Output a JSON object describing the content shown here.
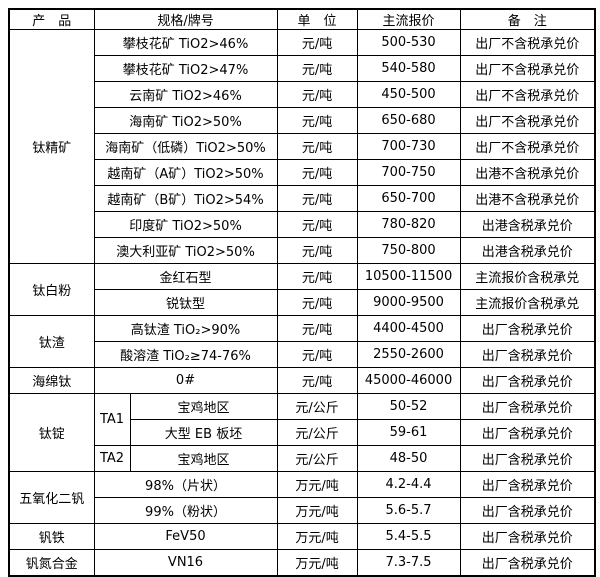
{
  "colors": {
    "background": "#ffffff",
    "border": "#000000",
    "text": "#000000"
  },
  "table": {
    "headers": {
      "product": "产　品",
      "spec": "规格/牌号",
      "unit": "单　位",
      "price": "主流报价",
      "note": "备　注"
    },
    "sections": [
      {
        "product": "钛精矿",
        "rows": [
          {
            "spec": "攀枝花矿 TiO2>46%",
            "unit": "元/吨",
            "price": "500-530",
            "note": "出厂不含税承兑价"
          },
          {
            "spec": "攀枝花矿 TiO2>47%",
            "unit": "元/吨",
            "price": "540-580",
            "note": "出厂不含税承兑价"
          },
          {
            "spec": "云南矿 TiO2>46%",
            "unit": "元/吨",
            "price": "450-500",
            "note": "出厂不含税承兑价"
          },
          {
            "spec": "海南矿 TiO2>50%",
            "unit": "元/吨",
            "price": "650-680",
            "note": "出厂不含税承兑价"
          },
          {
            "spec": "海南矿（低磷）TiO2>50%",
            "unit": "元/吨",
            "price": "700-730",
            "note": "出厂不含税承兑价"
          },
          {
            "spec": "越南矿（A矿）TiO2>50%",
            "unit": "元/吨",
            "price": "700-750",
            "note": "出港不含税承兑价"
          },
          {
            "spec": "越南矿（B矿）TiO2>54%",
            "unit": "元/吨",
            "price": "650-700",
            "note": "出港不含税承兑价"
          },
          {
            "spec": "印度矿 TiO2>50%",
            "unit": "元/吨",
            "price": "780-820",
            "note": "出港含税承兑价"
          },
          {
            "spec": "澳大利亚矿 TiO2>50%",
            "unit": "元/吨",
            "price": "750-800",
            "note": "出港含税承兑价"
          }
        ]
      },
      {
        "product": "钛白粉",
        "rows": [
          {
            "spec": "金红石型",
            "unit": "元/吨",
            "price": "10500-11500",
            "note": "主流报价含税承兑"
          },
          {
            "spec": "锐钛型",
            "unit": "元/吨",
            "price": "9000-9500",
            "note": "主流报价含税承兑"
          }
        ]
      },
      {
        "product": "钛渣",
        "rows": [
          {
            "spec": "高钛渣 TiO₂>90%",
            "unit": "元/吨",
            "price": "4400-4500",
            "note": "出厂含税承兑价"
          },
          {
            "spec": "酸溶渣 TiO₂≥74-76%",
            "unit": "元/吨",
            "price": "2550-2600",
            "note": "出厂含税承兑价"
          }
        ]
      },
      {
        "product": "海绵钛",
        "rows": [
          {
            "spec": "0#",
            "unit": "元/吨",
            "price": "45000-46000",
            "note": "出厂含税承兑价"
          }
        ]
      },
      {
        "product": "钛锭",
        "rows": [
          {
            "grade": "TA1",
            "spec": "宝鸡地区",
            "unit": "元/公斤",
            "price": "50-52",
            "note": "出厂含税承兑价"
          },
          {
            "spec": "大型 EB 板坯",
            "unit": "元/公斤",
            "price": "59-61",
            "note": "出厂含税承兑价"
          },
          {
            "grade": "TA2",
            "spec": "宝鸡地区",
            "unit": "元/公斤",
            "price": "48-50",
            "note": "出厂含税承兑价"
          }
        ]
      },
      {
        "product": "五氧化二钒",
        "rows": [
          {
            "spec": "98%（片状）",
            "unit": "万元/吨",
            "price": "4.2-4.4",
            "note": "出厂含税承兑价"
          },
          {
            "spec": "99%（粉状）",
            "unit": "万元/吨",
            "price": "5.6-5.7",
            "note": "出厂含税承兑价"
          }
        ]
      },
      {
        "product": "钒铁",
        "rows": [
          {
            "spec": "FeV50",
            "unit": "万元/吨",
            "price": "5.4-5.5",
            "note": "出厂含税承兑价"
          }
        ]
      },
      {
        "product": "钒氮合金",
        "rows": [
          {
            "spec": "VN16",
            "unit": "万元/吨",
            "price": "7.3-7.5",
            "note": "出厂含税承兑价"
          }
        ]
      }
    ]
  }
}
